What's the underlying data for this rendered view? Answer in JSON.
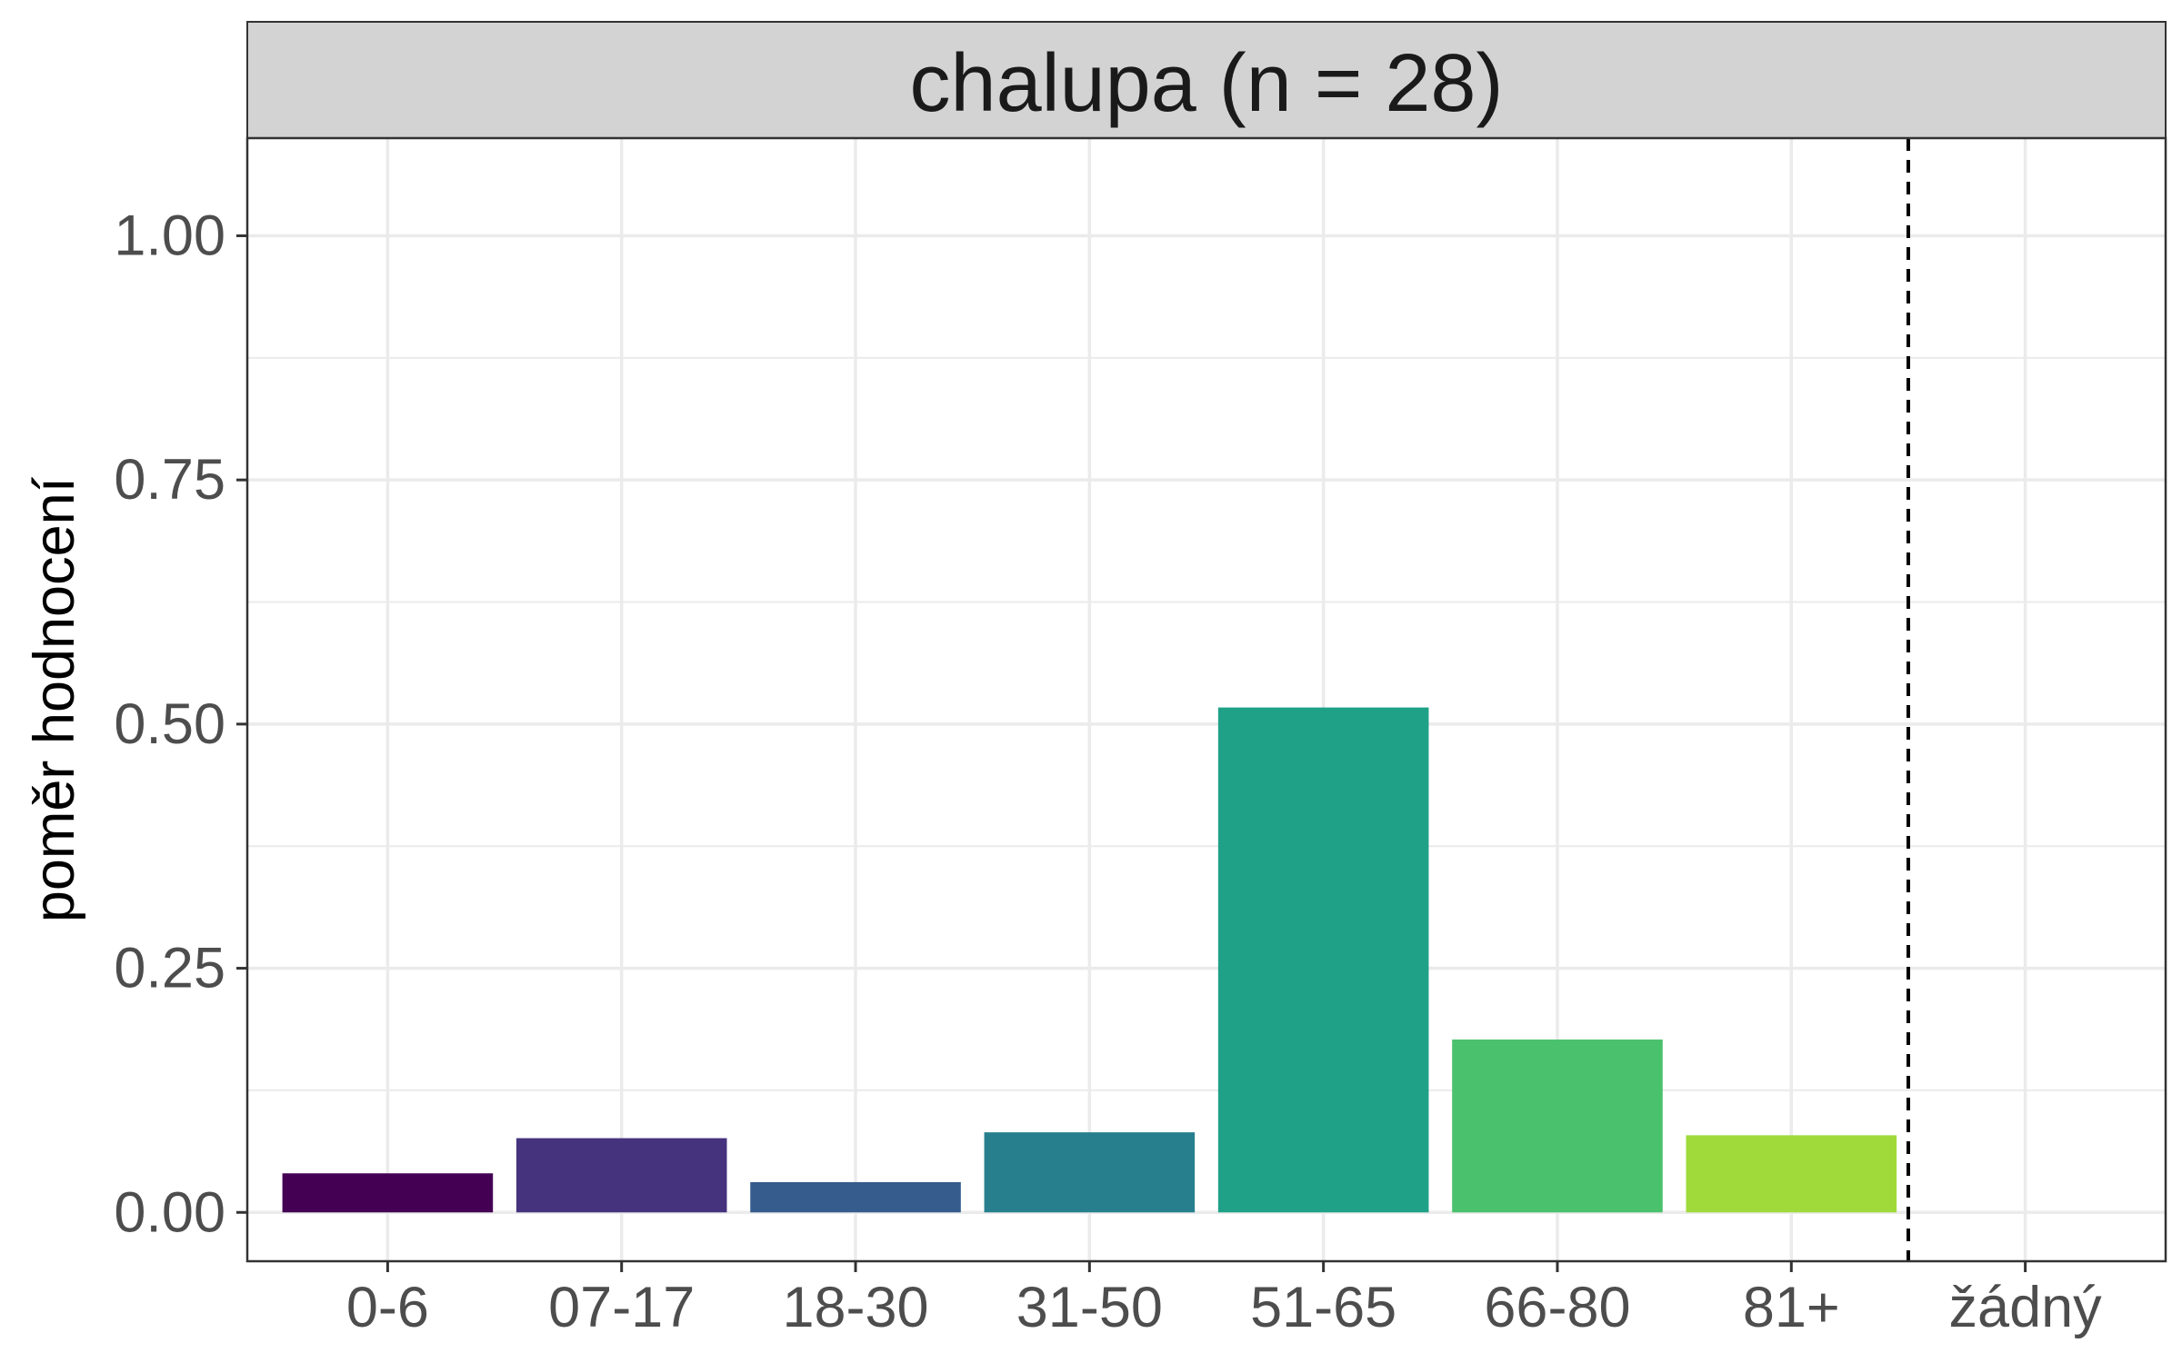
{
  "chart_data": {
    "type": "bar",
    "title": "chalupa (n = 28)",
    "ylabel": "poměr hodnocení",
    "xlabel": "",
    "categories": [
      "0-6",
      "07-17",
      "18-30",
      "31-50",
      "51-65",
      "66-80",
      "81+",
      "žádný"
    ],
    "values": [
      0.04,
      0.076,
      0.031,
      0.082,
      0.517,
      0.177,
      0.079,
      null
    ],
    "colors": [
      "#440154",
      "#46337E",
      "#365C8D",
      "#277F8E",
      "#1FA187",
      "#4AC16D",
      "#9FDA3A",
      "#FDE725"
    ],
    "ylim": [
      -0.05,
      1.1
    ],
    "yticks": [
      0.0,
      0.25,
      0.5,
      0.75,
      1.0
    ],
    "ytick_labels": [
      "0.00",
      "0.25",
      "0.50",
      "0.75",
      "1.00"
    ],
    "reference_line": {
      "between": [
        "81+",
        "žádný"
      ],
      "style": "dashed",
      "color": "#000000"
    },
    "grid": true,
    "legend": "none",
    "theme": {
      "strip_fill": "#D3D3D3",
      "gridline": "#EBEBEB",
      "panel_border": "#333333"
    }
  }
}
